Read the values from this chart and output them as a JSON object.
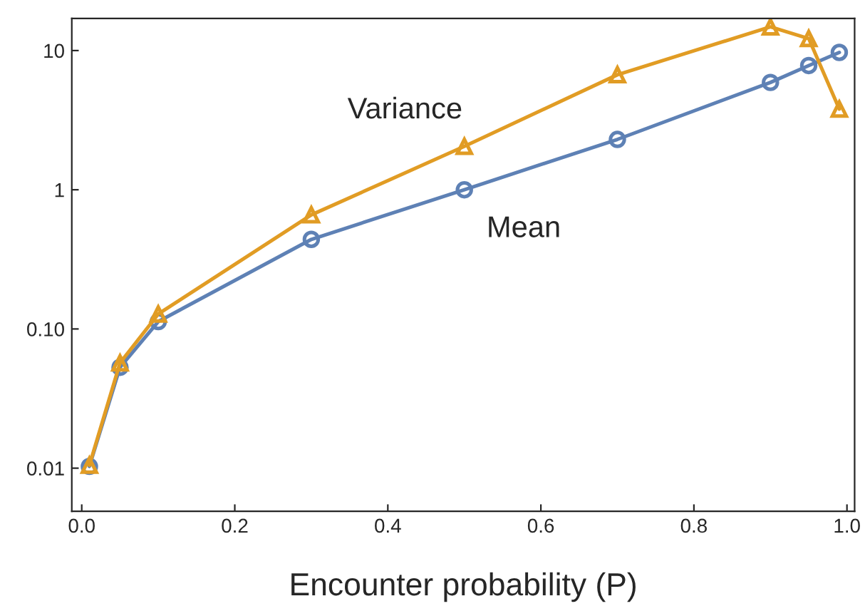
{
  "chart_data": {
    "type": "line",
    "xlabel": "Encounter probability (P)",
    "x": [
      0.01,
      0.05,
      0.1,
      0.3,
      0.5,
      0.7,
      0.9,
      0.95,
      0.99
    ],
    "series": [
      {
        "name": "Mean",
        "color": "#5e81b5",
        "marker": "circle",
        "values": [
          0.0103,
          0.053,
          0.113,
          0.44,
          1.0,
          2.3,
          5.9,
          7.8,
          9.7
        ]
      },
      {
        "name": "Variance",
        "color": "#e19c24",
        "marker": "triangle",
        "values": [
          0.0105,
          0.057,
          0.128,
          0.66,
          2.05,
          6.7,
          14.8,
          12.2,
          3.8
        ]
      }
    ],
    "log": "y",
    "xlim": [
      -0.013,
      1.01
    ],
    "ylim": [
      0.0049,
      17
    ],
    "xticks": [
      {
        "value": 0,
        "label": "0.0"
      },
      {
        "value": 0.2,
        "label": "0.2"
      },
      {
        "value": 0.4,
        "label": "0.4"
      },
      {
        "value": 0.6,
        "label": "0.6"
      },
      {
        "value": 0.8,
        "label": "0.8"
      },
      {
        "value": 1,
        "label": "1.0"
      }
    ],
    "yticks": [
      0.01,
      {
        "value": 0.1,
        "label": "0.10"
      },
      1,
      10
    ],
    "grid": false,
    "legend": false,
    "line_style": "solid"
  }
}
